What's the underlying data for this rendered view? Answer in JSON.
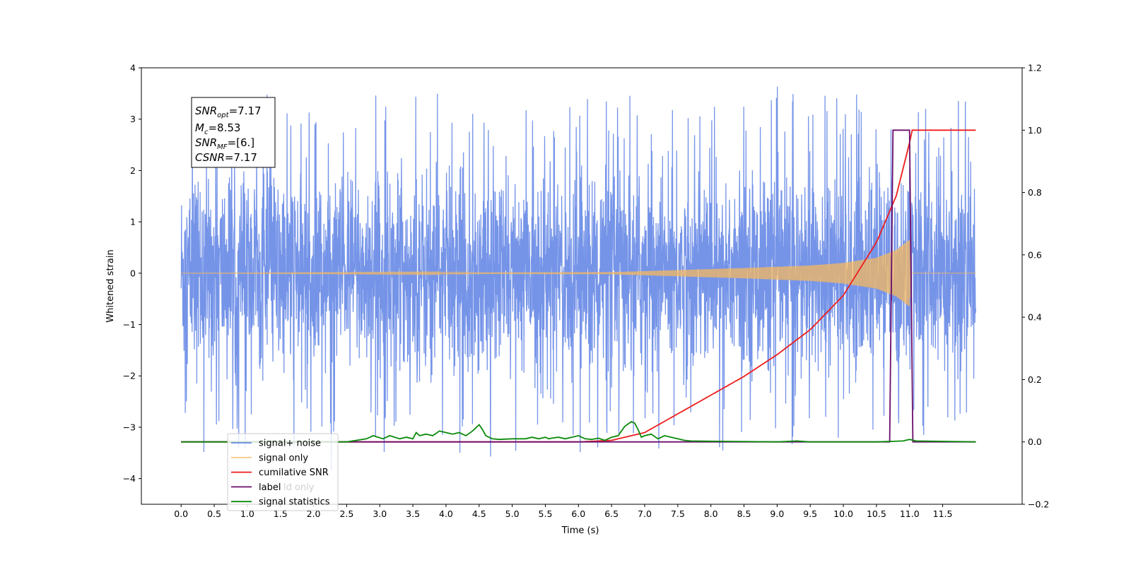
{
  "chart_data": {
    "type": "line",
    "title": "",
    "xlabel": "Time (s)",
    "ylabel": "Whitened strain",
    "y2label": "",
    "xlim": [
      -0.6,
      12.7
    ],
    "ylim": [
      -4.5,
      4.0
    ],
    "y2lim": [
      -0.2,
      1.2
    ],
    "x_ticks": [
      0.0,
      0.5,
      1.0,
      1.5,
      2.0,
      2.5,
      3.0,
      3.5,
      4.0,
      4.5,
      5.0,
      5.5,
      6.0,
      6.5,
      7.0,
      7.5,
      8.0,
      8.5,
      9.0,
      9.5,
      10.0,
      10.5,
      11.0,
      11.5
    ],
    "x_tick_labels": [
      "0.0",
      "0.5",
      "1.0",
      "1.5",
      "2.0",
      "2.5",
      "3.0",
      "3.5",
      "4.0",
      "4.5",
      "5.0",
      "5.5",
      "6.0",
      "6.5",
      "7.0",
      "7.5",
      "8.0",
      "8.5",
      "9.0",
      "9.5",
      "10.0",
      "10.5",
      "11.0",
      "11.5"
    ],
    "y_ticks": [
      -4,
      -3,
      -2,
      -1,
      0,
      1,
      2,
      3,
      4
    ],
    "y_tick_labels": [
      "−4",
      "−3",
      "−2",
      "−1",
      "0",
      "1",
      "2",
      "3",
      "4"
    ],
    "y2_ticks": [
      -0.2,
      0.0,
      0.2,
      0.4,
      0.6,
      0.8,
      1.0,
      1.2
    ],
    "y2_tick_labels": [
      "−0.2",
      "0.0",
      "0.2",
      "0.4",
      "0.6",
      "0.8",
      "1.0",
      "1.2"
    ],
    "grid": false,
    "legend_placement": "lower-left",
    "series": [
      {
        "name": "signal+ noise",
        "axis": "left",
        "color": "#6688e6",
        "x_range": [
          0.0,
          12.0
        ],
        "typical_range": [
          -1.7,
          1.4
        ],
        "min": -4.1,
        "max": 3.65
      },
      {
        "name": "signal only",
        "axis": "left",
        "color": "#f5b860",
        "x_range": [
          0.0,
          12.0
        ],
        "envelope": {
          "x": [
            0.0,
            6.5,
            7.5,
            8.5,
            9.5,
            10.0,
            10.5,
            10.8,
            11.0,
            11.02,
            12.0
          ],
          "amplitude": [
            0.0,
            0.02,
            0.06,
            0.1,
            0.15,
            0.2,
            0.3,
            0.45,
            0.65,
            0.0,
            0.0
          ]
        }
      },
      {
        "name": "cumilative SNR",
        "axis": "right",
        "color": "#ee1c1c",
        "x": [
          0.0,
          6.0,
          6.5,
          7.0,
          7.5,
          8.0,
          8.5,
          9.0,
          9.5,
          10.0,
          10.5,
          10.8,
          11.0,
          11.02,
          12.0
        ],
        "y": [
          0.0,
          0.0,
          0.005,
          0.03,
          0.09,
          0.15,
          0.21,
          0.28,
          0.36,
          0.47,
          0.64,
          0.79,
          0.96,
          1.0,
          1.0
        ]
      },
      {
        "name": "label",
        "axis": "right",
        "color": "#6a0d6a",
        "x": [
          0.0,
          10.7,
          10.75,
          11.0,
          11.05,
          12.0
        ],
        "y": [
          0.0,
          0.0,
          1.0,
          1.0,
          0.0,
          0.0
        ]
      },
      {
        "name": "signal statistics",
        "axis": "right",
        "color": "#0a8a0a",
        "x": [
          0.0,
          2.5,
          2.8,
          2.9,
          3.05,
          3.15,
          3.3,
          3.4,
          3.5,
          3.55,
          3.6,
          3.7,
          3.8,
          3.9,
          4.0,
          4.1,
          4.2,
          4.3,
          4.4,
          4.5,
          4.55,
          4.6,
          4.7,
          4.8,
          5.0,
          5.2,
          5.3,
          5.4,
          5.5,
          5.55,
          5.6,
          5.7,
          5.8,
          5.9,
          6.0,
          6.05,
          6.1,
          6.2,
          6.3,
          6.4,
          6.5,
          6.6,
          6.7,
          6.8,
          6.85,
          6.9,
          6.95,
          7.0,
          7.1,
          7.2,
          7.3,
          7.4,
          7.5,
          7.6,
          7.7,
          8.0,
          9.0,
          9.3,
          9.5,
          10.5,
          10.9,
          11.0,
          11.1,
          12.0
        ],
        "y": [
          0.0,
          0.0,
          0.01,
          0.02,
          0.01,
          0.02,
          0.01,
          0.015,
          0.01,
          0.03,
          0.02,
          0.025,
          0.02,
          0.035,
          0.03,
          0.025,
          0.03,
          0.02,
          0.035,
          0.055,
          0.04,
          0.02,
          0.01,
          0.008,
          0.01,
          0.01,
          0.015,
          0.01,
          0.015,
          0.01,
          0.012,
          0.015,
          0.01,
          0.015,
          0.02,
          0.015,
          0.01,
          0.008,
          0.012,
          0.005,
          0.015,
          0.02,
          0.05,
          0.065,
          0.06,
          0.04,
          0.015,
          0.02,
          0.025,
          0.01,
          0.02,
          0.015,
          0.01,
          0.005,
          0.003,
          0.002,
          0.0,
          0.003,
          0.0,
          0.0,
          0.003,
          0.008,
          0.003,
          0.0
        ]
      }
    ],
    "info_box": {
      "snr_opt": "7.17",
      "mc": "8.53",
      "snr_mf": "[6.]",
      "csnr": "7.17"
    },
    "legend_overlap_text": "ld only"
  }
}
